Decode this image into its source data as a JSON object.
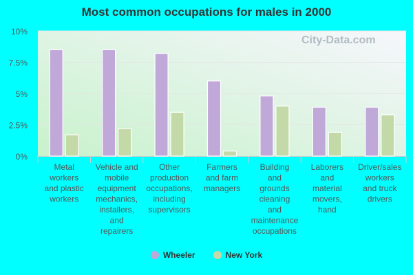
{
  "chart_data": {
    "type": "bar",
    "title": "Most common occupations for males in 2000",
    "categories": [
      "Metal workers and plastic workers",
      "Vehicle and mobile equipment mechanics, installers, and repairers",
      "Other production occupations, including supervisors",
      "Farmers and farm managers",
      "Building and grounds cleaning and maintenance occupations",
      "Laborers and material movers, hand",
      "Driver/sales workers and truck drivers"
    ],
    "category_lines": [
      [
        "Metal",
        "workers",
        "and plastic",
        "workers"
      ],
      [
        "Vehicle and",
        "mobile",
        "equipment",
        "mechanics,",
        "installers,",
        "and",
        "repairers"
      ],
      [
        "Other",
        "production",
        "occupations,",
        "including",
        "supervisors"
      ],
      [
        "Farmers",
        "and farm",
        "managers"
      ],
      [
        "Building",
        "and",
        "grounds",
        "cleaning",
        "and",
        "maintenance",
        "occupations"
      ],
      [
        "Laborers",
        "and",
        "material",
        "movers,",
        "hand"
      ],
      [
        "Driver/sales",
        "workers",
        "and truck",
        "drivers"
      ]
    ],
    "series": [
      {
        "name": "Wheeler",
        "color": "#c0a8d8",
        "values": [
          8.5,
          8.5,
          8.2,
          6.0,
          4.8,
          3.9,
          3.9
        ]
      },
      {
        "name": "New York",
        "color": "#c4d9a8",
        "values": [
          1.7,
          2.2,
          3.5,
          0.4,
          4.0,
          1.9,
          3.3
        ]
      }
    ],
    "ylim": [
      0,
      10
    ],
    "yticks": [
      0,
      2.5,
      5,
      7.5,
      10
    ],
    "ytick_labels": [
      "0%",
      "2.5%",
      "5%",
      "7.5%",
      "10%"
    ],
    "grid": true,
    "legend_placement": "bottom"
  },
  "watermark": "City-Data.com"
}
